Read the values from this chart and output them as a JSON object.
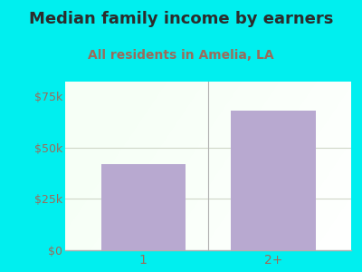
{
  "title": "Median family income by earners",
  "subtitle": "All residents in Amelia, LA",
  "categories": [
    "1",
    "2+"
  ],
  "values": [
    42000,
    68000
  ],
  "bar_color": "#b8a9d0",
  "yticks": [
    0,
    25000,
    50000,
    75000
  ],
  "ytick_labels": [
    "$0",
    "$25k",
    "$50k",
    "$75k"
  ],
  "ylim": [
    0,
    82000
  ],
  "outer_bg": "#00efef",
  "title_color": "#2c2c2c",
  "subtitle_color": "#9b6b5a",
  "tick_color": "#9b6b5a",
  "title_fontsize": 13,
  "subtitle_fontsize": 10,
  "axis_line_color": "#b0b0b0",
  "grid_color": "#d0d8c8"
}
